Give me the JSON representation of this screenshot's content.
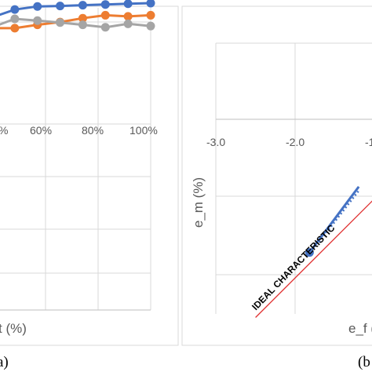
{
  "chart_data": [
    {
      "type": "line",
      "panel_label": "a)",
      "xlabel": "t (%)",
      "x_ticks": [
        "60%",
        "80%",
        "100%"
      ],
      "x_tick_partial": "%",
      "xlim": [
        30,
        100
      ],
      "ylim": [
        0,
        1
      ],
      "grid": true,
      "colors": {
        "blue": "#4472c4",
        "orange": "#ed7d31",
        "gray": "#a5a5a5"
      },
      "x": [
        30,
        40,
        50,
        60,
        70,
        80,
        90,
        100
      ],
      "series": [
        {
          "color": "#4472c4",
          "values": [
            0.86,
            0.923,
            0.948,
            0.952,
            0.958,
            0.964,
            0.97,
            0.975
          ]
        },
        {
          "color": "#ed7d31",
          "values": [
            0.773,
            0.773,
            0.8,
            0.822,
            0.853,
            0.877,
            0.868,
            0.877
          ]
        },
        {
          "color": "#a5a5a5",
          "values": [
            0.78,
            0.848,
            0.834,
            0.818,
            0.8,
            0.78,
            0.808,
            0.79
          ]
        }
      ]
    },
    {
      "type": "line",
      "panel_label": "(b",
      "xlabel": "e_f (",
      "ylabel": "e_m (%)",
      "x_ticks": [
        "-3.0",
        "-2.0",
        "-1"
      ],
      "xlim": [
        -3.0,
        -0.5
      ],
      "ylim": [
        -3.0,
        0
      ],
      "grid": true,
      "annotation": "IDEAL CHARACTERISTIC",
      "colors": {
        "measured": "#4472c4",
        "ideal": "#e03030"
      },
      "ideal_line": {
        "x": [
          -2.5,
          -0.5
        ],
        "y": [
          -2.5,
          -0.5
        ],
        "color": "#e03030"
      },
      "measured": {
        "x": [
          -1.82,
          -1.2
        ],
        "y": [
          -1.68,
          -0.85
        ],
        "color": "#4472c4"
      },
      "trend": {
        "x": [
          -1.7,
          -1.2
        ],
        "y": [
          -1.55,
          -0.9
        ],
        "color": "#4472c4",
        "style": "dotted"
      }
    }
  ]
}
